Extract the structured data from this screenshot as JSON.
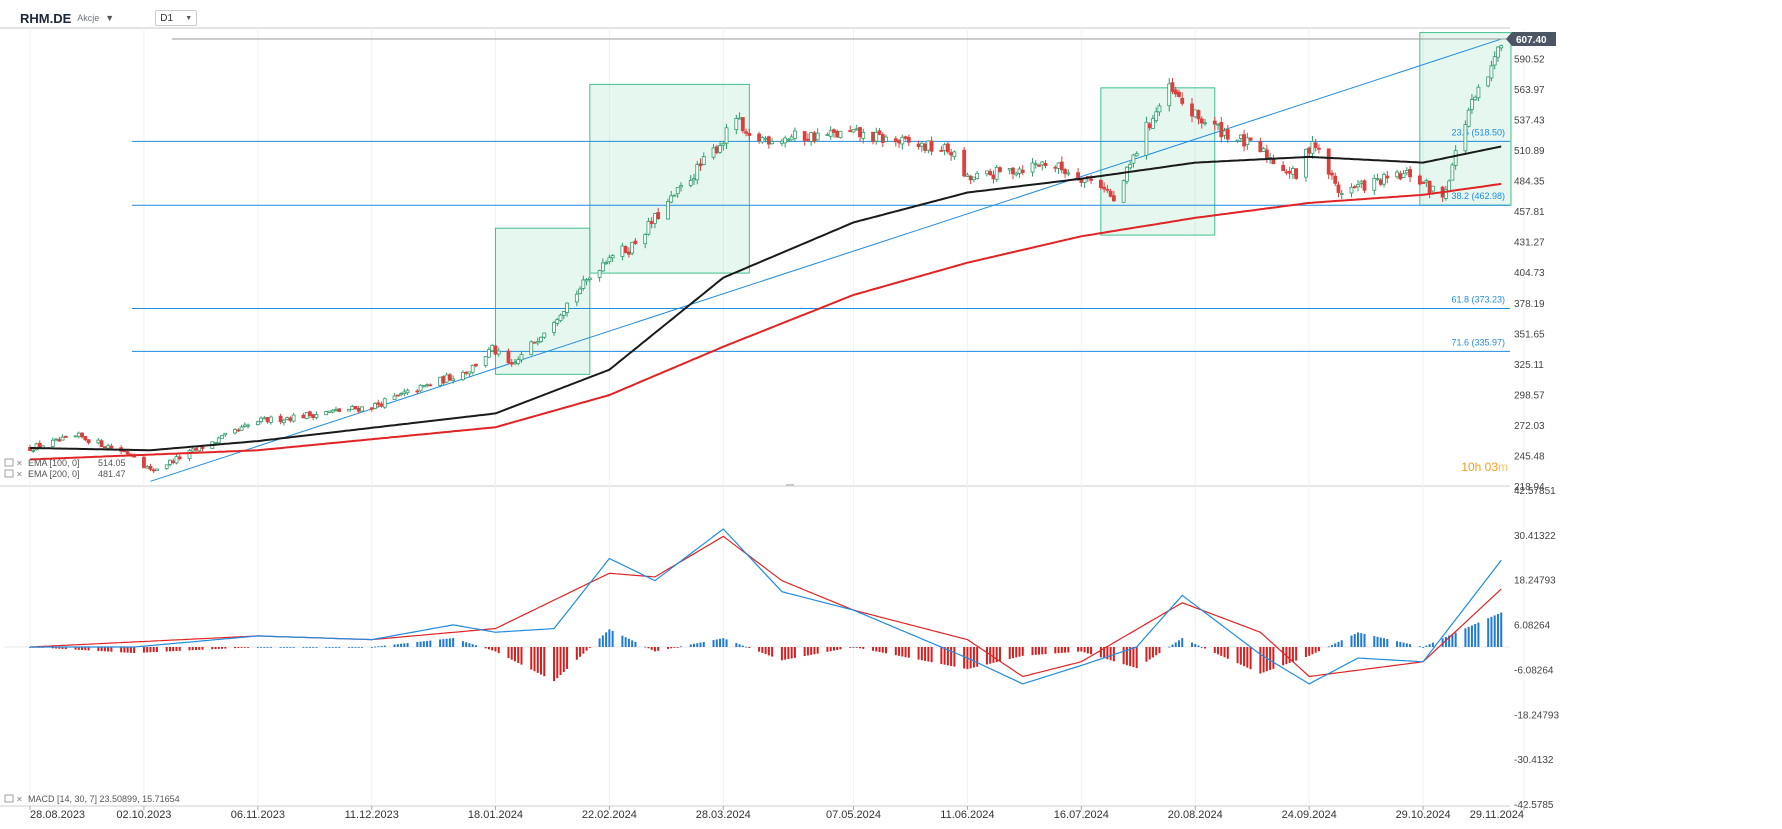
{
  "symbol": {
    "name": "RHM.DE",
    "type": "Akcje",
    "timeframe": "D1",
    "dropdown_icon": "caret-down-icon"
  },
  "price_tag": "607.40",
  "countdown": {
    "hours": "10h",
    "minutes": "03",
    "unit": "m"
  },
  "price_axis": [
    "590.52",
    "563.97",
    "537.43",
    "510.89",
    "484.35",
    "457.81",
    "431.27",
    "404.73",
    "378.19",
    "351.65",
    "325.11",
    "298.57",
    "272.03",
    "245.48",
    "218.94"
  ],
  "macd_axis": [
    "42.57851",
    "30.41322",
    "18.24793",
    "6.08264",
    "-6.08264",
    "-18.24793",
    "-30.4132",
    "-42.5785"
  ],
  "date_axis": [
    "28.08.2023",
    "02.10.2023",
    "06.11.2023",
    "11.12.2023",
    "18.01.2024",
    "22.02.2024",
    "28.03.2024",
    "07.05.2024",
    "11.06.2024",
    "16.07.2024",
    "20.08.2024",
    "24.09.2024",
    "29.10.2024",
    "29.11.2024"
  ],
  "legend": [
    {
      "label": "EMA (100, 0)",
      "value": "514.05",
      "color": "#1a1a1a"
    },
    {
      "label": "EMA (200, 0)",
      "value": "481.47",
      "color": "#e02424"
    }
  ],
  "macd_legend": "MACD (14, 30, 7)  23.50899,  15.71654",
  "fib_levels": [
    {
      "label": "23.6 (518.50)",
      "value": 518.5
    },
    {
      "label": "38.2 (462.98)",
      "value": 462.98
    },
    {
      "label": "61.8 (373.23)",
      "value": 373.23
    },
    {
      "label": "71.6 (335.97)",
      "value": 335.97
    }
  ],
  "colors": {
    "up": "#2e9d6a",
    "down": "#d9413f",
    "ema100": "#1a1a1a",
    "ema200": "#e02424",
    "fib": "#1f8ce0",
    "macd_line": "#1f8ce0",
    "signal_line": "#e02424",
    "box": "#3fc08c"
  },
  "chart_data": {
    "type": "candlestick",
    "instrument": "RHM.DE",
    "timeframe": "D1",
    "last_price": 607.4,
    "x_range": [
      "28.08.2023",
      "29.11.2024"
    ],
    "y_range": [
      218.94,
      617
    ],
    "ohlc_anchors": [
      {
        "date": "28.08.2023",
        "close": 252
      },
      {
        "date": "12.09.2023",
        "close": 262
      },
      {
        "date": "29.09.2023",
        "close": 246
      },
      {
        "date": "04.10.2023",
        "close": 232
      },
      {
        "date": "06.11.2023",
        "close": 275
      },
      {
        "date": "11.12.2023",
        "close": 288
      },
      {
        "date": "10.01.2024",
        "close": 320
      },
      {
        "date": "17.01.2024",
        "close": 338
      },
      {
        "date": "23.01.2024",
        "close": 322
      },
      {
        "date": "22.02.2024",
        "close": 420
      },
      {
        "date": "28.02.2024",
        "close": 425
      },
      {
        "date": "28.03.2024",
        "close": 520
      },
      {
        "date": "01.04.2024",
        "close": 540
      },
      {
        "date": "04.04.2024",
        "close": 520
      },
      {
        "date": "07.05.2024",
        "close": 525
      },
      {
        "date": "06.06.2024",
        "close": 510
      },
      {
        "date": "11.06.2024",
        "close": 485
      },
      {
        "date": "05.07.2024",
        "close": 500
      },
      {
        "date": "23.07.2024",
        "close": 480
      },
      {
        "date": "26.07.2024",
        "close": 465
      },
      {
        "date": "05.08.2024",
        "close": 530
      },
      {
        "date": "12.08.2024",
        "close": 563
      },
      {
        "date": "20.08.2024",
        "close": 540
      },
      {
        "date": "09.09.2024",
        "close": 510
      },
      {
        "date": "20.09.2024",
        "close": 488
      },
      {
        "date": "25.09.2024",
        "close": 520
      },
      {
        "date": "03.10.2024",
        "close": 475
      },
      {
        "date": "25.10.2024",
        "close": 490
      },
      {
        "date": "04.11.2024",
        "close": 470
      },
      {
        "date": "12.11.2024",
        "close": 545
      },
      {
        "date": "19.11.2024",
        "close": 580
      },
      {
        "date": "22.11.2024",
        "close": 607.4
      }
    ],
    "ema100_anchors": [
      {
        "date": "28.08.2023",
        "value": 252
      },
      {
        "date": "04.10.2023",
        "value": 250
      },
      {
        "date": "06.11.2023",
        "value": 258
      },
      {
        "date": "18.01.2024",
        "value": 282
      },
      {
        "date": "22.02.2024",
        "value": 320
      },
      {
        "date": "28.03.2024",
        "value": 400
      },
      {
        "date": "07.05.2024",
        "value": 448
      },
      {
        "date": "11.06.2024",
        "value": 474
      },
      {
        "date": "16.07.2024",
        "value": 486
      },
      {
        "date": "20.08.2024",
        "value": 500
      },
      {
        "date": "24.09.2024",
        "value": 505
      },
      {
        "date": "29.10.2024",
        "value": 500
      },
      {
        "date": "22.11.2024",
        "value": 514.05
      }
    ],
    "ema200_anchors": [
      {
        "date": "28.08.2023",
        "value": 242
      },
      {
        "date": "06.11.2023",
        "value": 250
      },
      {
        "date": "18.01.2024",
        "value": 270
      },
      {
        "date": "22.02.2024",
        "value": 298
      },
      {
        "date": "28.03.2024",
        "value": 340
      },
      {
        "date": "07.05.2024",
        "value": 385
      },
      {
        "date": "11.06.2024",
        "value": 413
      },
      {
        "date": "16.07.2024",
        "value": 436
      },
      {
        "date": "20.08.2024",
        "value": 452
      },
      {
        "date": "24.09.2024",
        "value": 465
      },
      {
        "date": "29.10.2024",
        "value": 472
      },
      {
        "date": "22.11.2024",
        "value": 481.47
      }
    ],
    "trendline": [
      {
        "date": "04.10.2023",
        "value": 223
      },
      {
        "date": "22.11.2024",
        "value": 607.4
      }
    ],
    "boxes": [
      {
        "from": "18.01.2024",
        "to": "16.02.2024",
        "low": 316,
        "high": 443
      },
      {
        "from": "16.02.2024",
        "to": "05.04.2024",
        "low": 404,
        "high": 568
      },
      {
        "from": "22.07.2024",
        "to": "26.08.2024",
        "low": 437,
        "high": 565
      },
      {
        "from": "28.10.2024",
        "to": "25.11.2024",
        "low": 462.98,
        "high": 613
      }
    ],
    "macd": {
      "params": "14, 30, 7",
      "macd_last": 23.50899,
      "signal_last": 15.71654,
      "y_range": [
        -42.5785,
        42.57851
      ],
      "macd_anchors": [
        {
          "date": "28.08.2023",
          "value": 0
        },
        {
          "date": "29.09.2023",
          "value": 0
        },
        {
          "date": "06.11.2023",
          "value": 3
        },
        {
          "date": "11.12.2023",
          "value": 2
        },
        {
          "date": "05.01.2024",
          "value": 6
        },
        {
          "date": "18.01.2024",
          "value": 4
        },
        {
          "date": "05.02.2024",
          "value": 5
        },
        {
          "date": "22.02.2024",
          "value": 24
        },
        {
          "date": "07.03.2024",
          "value": 18
        },
        {
          "date": "28.03.2024",
          "value": 32
        },
        {
          "date": "15.04.2024",
          "value": 15
        },
        {
          "date": "07.05.2024",
          "value": 10
        },
        {
          "date": "11.06.2024",
          "value": -3
        },
        {
          "date": "28.06.2024",
          "value": -10
        },
        {
          "date": "16.07.2024",
          "value": -5
        },
        {
          "date": "02.08.2024",
          "value": 0
        },
        {
          "date": "16.08.2024",
          "value": 14
        },
        {
          "date": "09.09.2024",
          "value": -2
        },
        {
          "date": "24.09.2024",
          "value": -10
        },
        {
          "date": "09.10.2024",
          "value": -3
        },
        {
          "date": "29.10.2024",
          "value": -4
        },
        {
          "date": "22.11.2024",
          "value": 23.50899
        }
      ],
      "signal_anchors": [
        {
          "date": "28.08.2023",
          "value": 0
        },
        {
          "date": "06.11.2023",
          "value": 3
        },
        {
          "date": "11.12.2023",
          "value": 2
        },
        {
          "date": "18.01.2024",
          "value": 5
        },
        {
          "date": "22.02.2024",
          "value": 20
        },
        {
          "date": "07.03.2024",
          "value": 19
        },
        {
          "date": "28.03.2024",
          "value": 30
        },
        {
          "date": "15.04.2024",
          "value": 18
        },
        {
          "date": "07.05.2024",
          "value": 10
        },
        {
          "date": "11.06.2024",
          "value": 2
        },
        {
          "date": "28.06.2024",
          "value": -8
        },
        {
          "date": "16.07.2024",
          "value": -4
        },
        {
          "date": "16.08.2024",
          "value": 12
        },
        {
          "date": "09.09.2024",
          "value": 4
        },
        {
          "date": "24.09.2024",
          "value": -8
        },
        {
          "date": "29.10.2024",
          "value": -4
        },
        {
          "date": "22.11.2024",
          "value": 15.71654
        }
      ]
    }
  }
}
